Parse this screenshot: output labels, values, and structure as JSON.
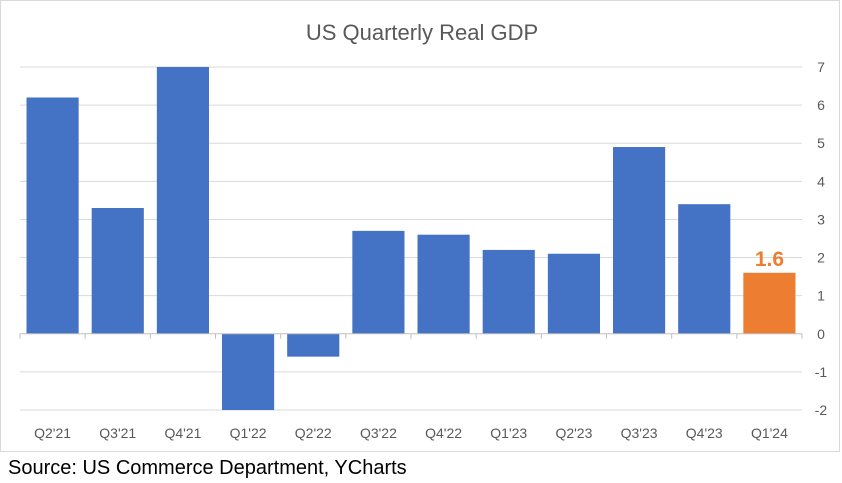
{
  "chart_data": {
    "type": "bar",
    "title": "US Quarterly Real GDP",
    "categories": [
      "Q2'21",
      "Q3'21",
      "Q4'21",
      "Q1'22",
      "Q2'22",
      "Q3'22",
      "Q4'22",
      "Q1'23",
      "Q2'23",
      "Q3'23",
      "Q4'23",
      "Q1'24"
    ],
    "values": [
      6.2,
      3.3,
      7.0,
      -2.0,
      -0.6,
      2.7,
      2.6,
      2.2,
      2.1,
      4.9,
      3.4,
      1.6
    ],
    "xlabel": "",
    "ylabel": "",
    "ylim": [
      -2,
      7
    ],
    "yticks": [
      "-2",
      "-1",
      "0",
      "1",
      "2",
      "3",
      "4",
      "5",
      "6",
      "7"
    ],
    "y_axis_side": "right",
    "grid": true,
    "legend": "none",
    "bar_color": "#4472c4",
    "highlight_color": "#ed7d31",
    "highlight_index": 11,
    "data_label": "1.6"
  },
  "footer": {
    "source": "Source: US Commerce Department, YCharts"
  }
}
